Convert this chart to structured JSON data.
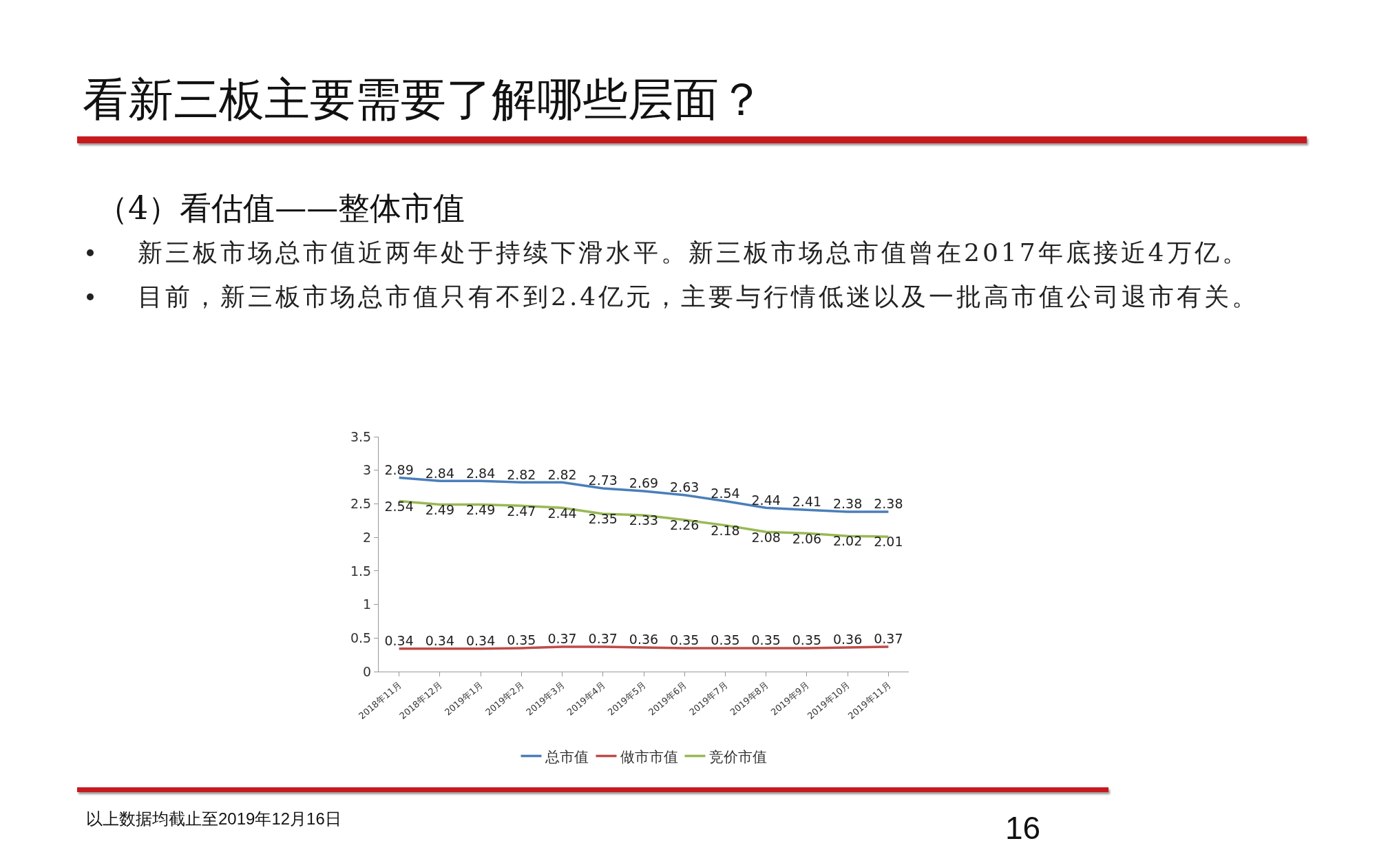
{
  "chart_data": {
    "type": "line",
    "title": "看新三板主要需要了解哪些层面？",
    "subtitle": "（4）看估值——整体市值",
    "annotations": [
      "新三板市场总市值近两年处于持续下滑水平。新三板市场总市值曾在2017年底接近4万亿。",
      "目前，新三板市场总市值只有不到2.4亿元，主要与行情低迷以及一批高市值公司退市有关。",
      "以上数据均截止至2019年12月16日",
      "16"
    ],
    "categories": [
      "2018年11月",
      "2018年12月",
      "2019年1月",
      "2019年2月",
      "2019年3月",
      "2019年4月",
      "2019年5月",
      "2019年6月",
      "2019年7月",
      "2019年8月",
      "2019年9月",
      "2019年10月",
      "2019年11月"
    ],
    "series": [
      {
        "name": "总市值",
        "color": "#4a7ebb",
        "values": [
          2.89,
          2.84,
          2.84,
          2.82,
          2.82,
          2.73,
          2.69,
          2.63,
          2.54,
          2.44,
          2.41,
          2.38,
          2.38
        ]
      },
      {
        "name": "做市市值",
        "color": "#be4b48",
        "values": [
          0.34,
          0.34,
          0.34,
          0.35,
          0.37,
          0.37,
          0.36,
          0.35,
          0.35,
          0.35,
          0.35,
          0.36,
          0.37
        ]
      },
      {
        "name": "竞价市值",
        "color": "#98b954",
        "values": [
          2.54,
          2.49,
          2.49,
          2.47,
          2.44,
          2.35,
          2.33,
          2.26,
          2.18,
          2.08,
          2.06,
          2.02,
          2.01
        ]
      }
    ],
    "ylim": [
      0,
      3.5
    ],
    "yticks": [
      0,
      0.5,
      1,
      1.5,
      2,
      2.5,
      3,
      3.5
    ],
    "grid": false,
    "legend": "bottom",
    "data_labels": true,
    "marker": "none",
    "line_style": "solid"
  }
}
